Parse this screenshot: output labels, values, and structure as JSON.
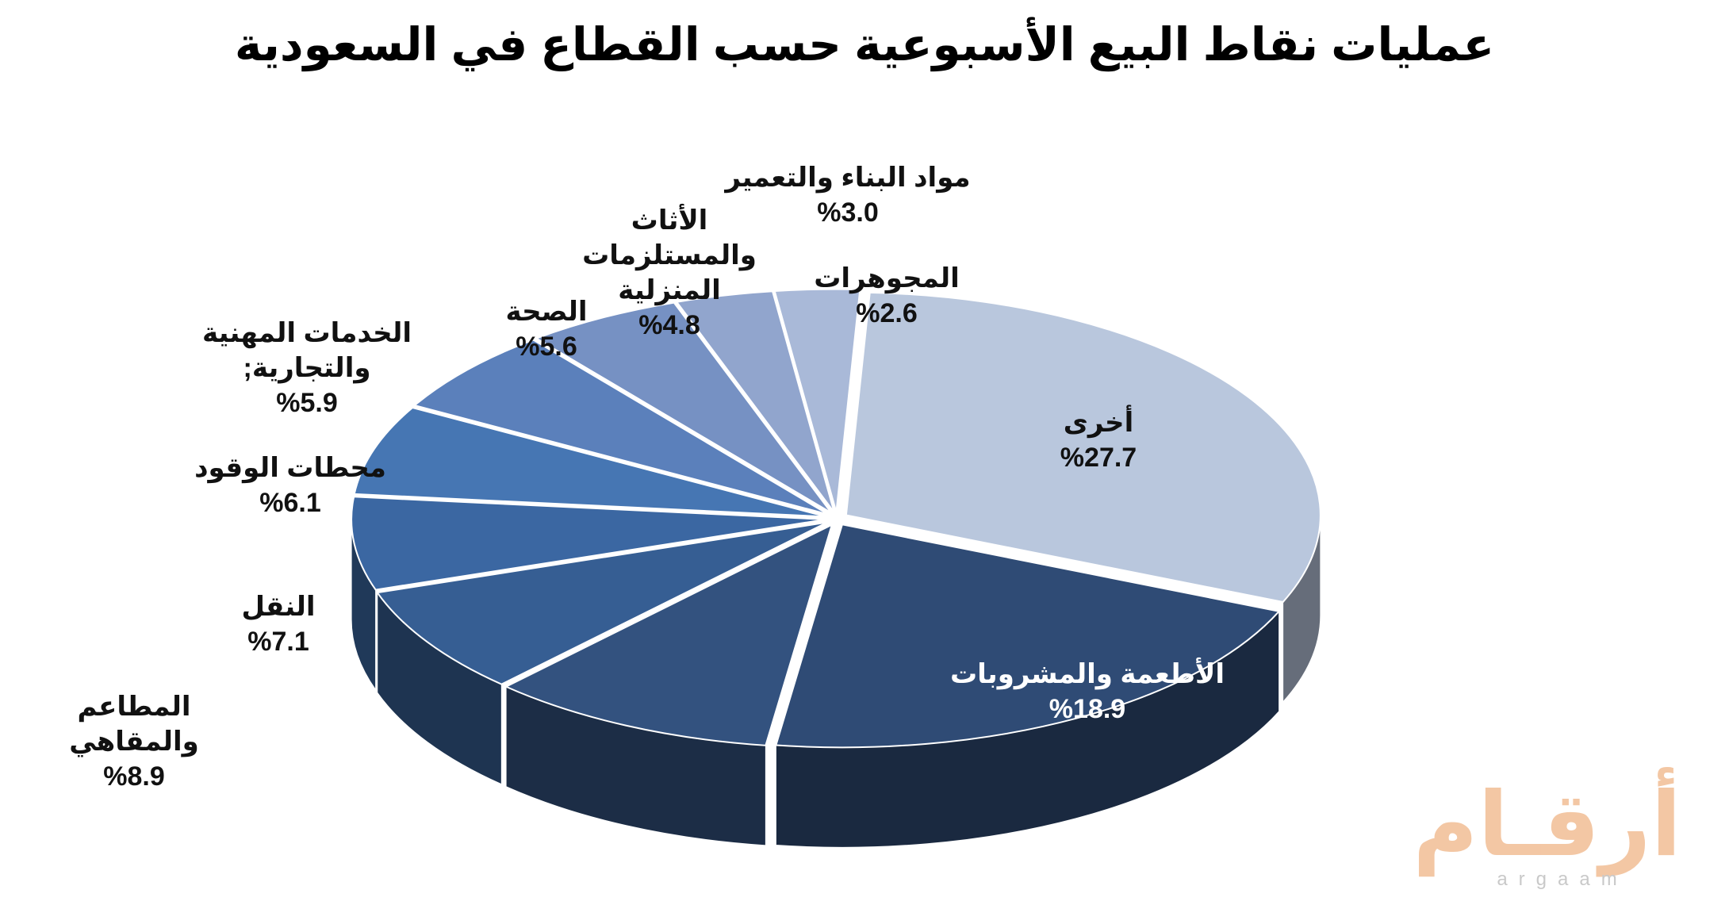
{
  "chart_data": {
    "type": "pie3d",
    "title": "عمليات نقاط البيع الأسبوعية حسب القطاع في السعودية",
    "categories": [
      "أخرى",
      "الأطعمة والمشروبات",
      "المطاعم والمقاهي",
      "النقل",
      "محطات الوقود",
      "الخدمات المهنية والتجارية;",
      "الصحة",
      "الأثاث والمستلزمات المنزلية",
      "مواد البناء والتعمير",
      "المجوهرات"
    ],
    "values": [
      27.7,
      18.9,
      8.9,
      7.1,
      6.1,
      5.9,
      5.6,
      4.8,
      3.0,
      2.6
    ],
    "value_labels": [
      "%27.7",
      "%18.9",
      "%8.9",
      "%7.1",
      "%6.1",
      "%5.9",
      "%5.6",
      "%4.8",
      "%3.0",
      "%2.6"
    ],
    "colors": [
      "#b9c7dd",
      "#2f4b75",
      "#33527f",
      "#365e93",
      "#3b67a2",
      "#4676b3",
      "#5b80bb",
      "#7691c3",
      "#91a5cd",
      "#a9b9d8"
    ]
  },
  "logo": {
    "arabic": "أرقـام",
    "latin": "argaam"
  }
}
